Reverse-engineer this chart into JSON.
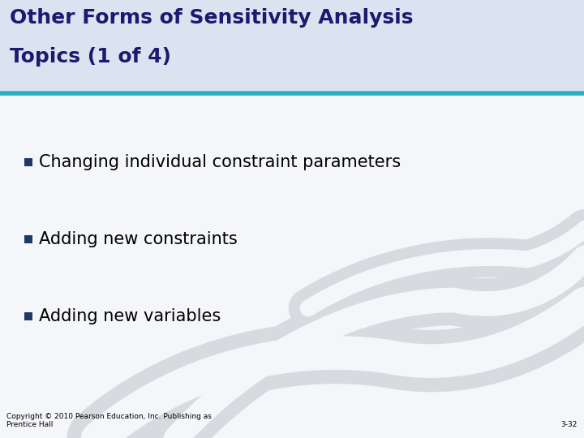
{
  "title_line1": "Other Forms of Sensitivity Analysis",
  "title_line2": "Topics (1 of 4)",
  "title_bg_color": "#dce3f0",
  "title_text_color": "#1a1a6e",
  "body_bg_color": "#f5f6fa",
  "separator_color": "#2ab0c0",
  "separator_linewidth": 4,
  "bullet_color": "#1f3864",
  "bullet_items": [
    "Changing individual constraint parameters",
    "Adding new constraints",
    "Adding new variables"
  ],
  "bullet_text_color": "#000000",
  "footer_left": "Copyright © 2010 Pearson Education, Inc. Publishing as\nPrentice Hall",
  "footer_right": "3-32",
  "footer_color": "#000000",
  "wave_color": "#d8dadf",
  "title_fontsize": 18,
  "bullet_fontsize": 15
}
